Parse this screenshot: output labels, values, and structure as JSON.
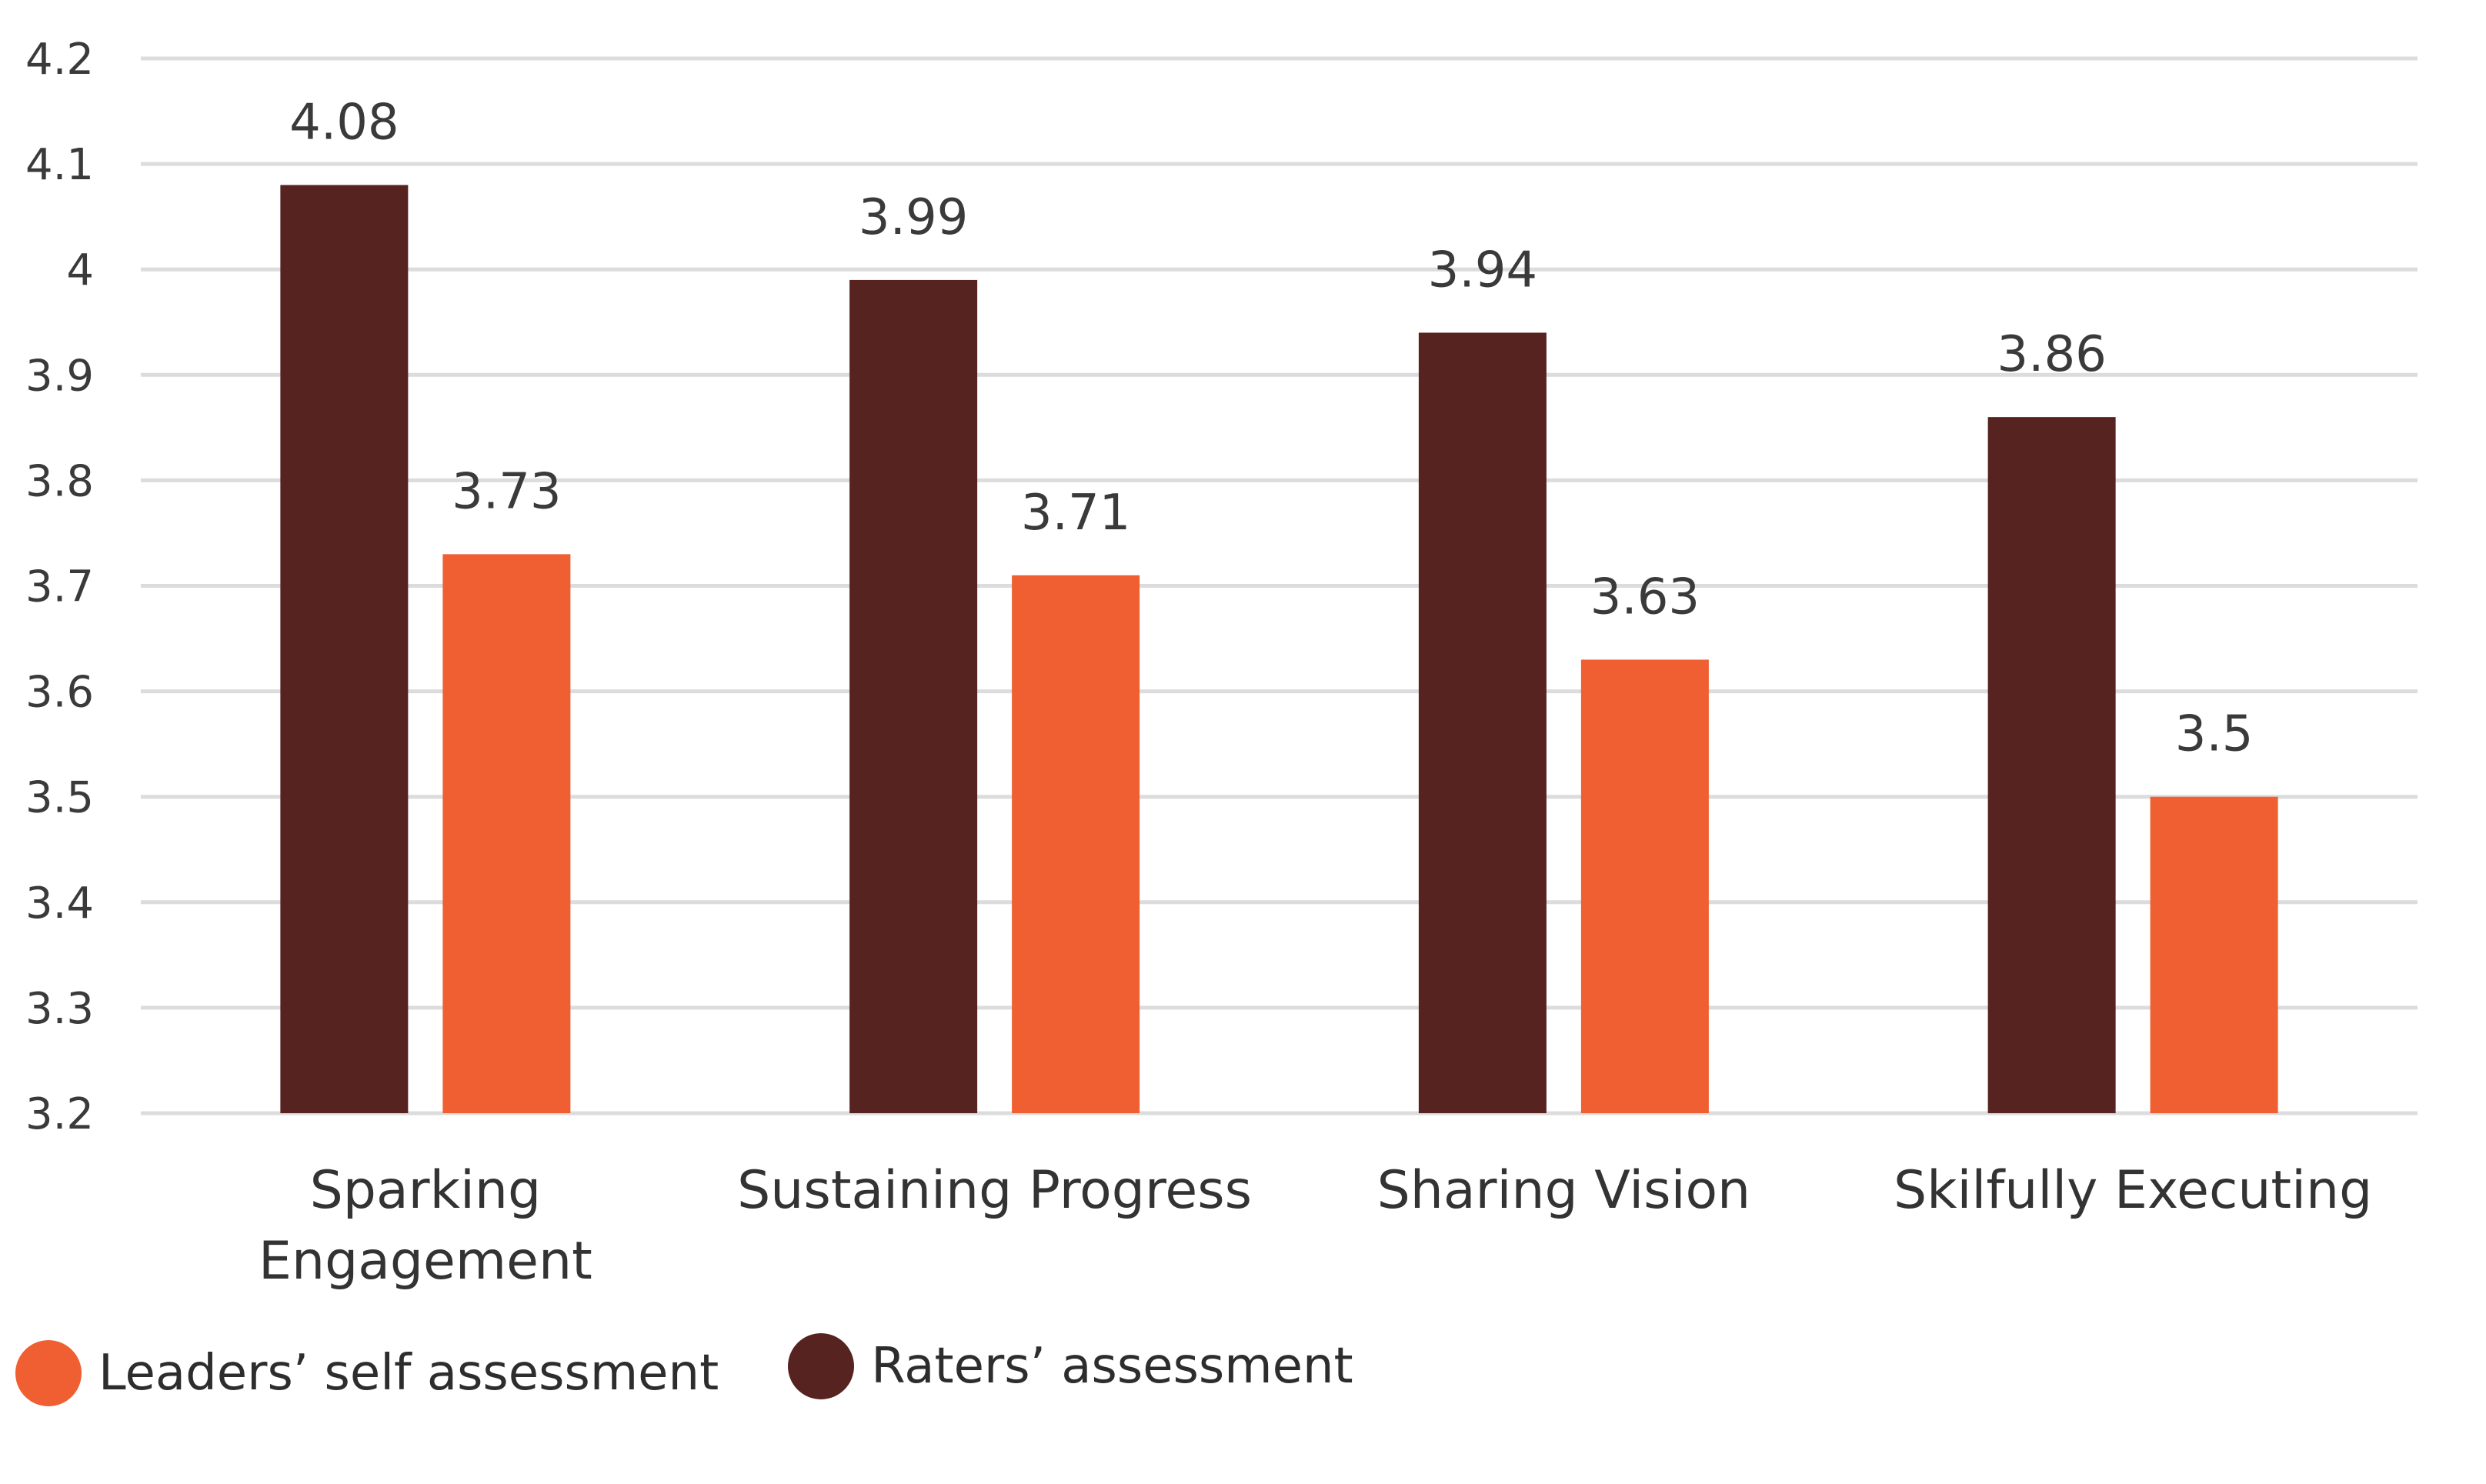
{
  "chart_data": {
    "type": "bar",
    "title": "",
    "xlabel": "",
    "ylabel": "",
    "ylim": [
      3.2,
      4.2
    ],
    "yticks": [
      "3.2",
      "3.3",
      "3.4",
      "3.5",
      "3.6",
      "3.7",
      "3.8",
      "3.9",
      "4",
      "4.1",
      "4.2"
    ],
    "grid": true,
    "categories": [
      [
        "Sparking",
        "Engagement"
      ],
      [
        "Sustaining Progress"
      ],
      [
        "Sharing Vision"
      ],
      [
        "Skilfully Executing"
      ]
    ],
    "series": [
      {
        "name": "Raters’ assessment",
        "color": "#562320",
        "values": [
          4.08,
          3.99,
          3.94,
          3.86
        ],
        "labels": [
          "4.08",
          "3.99",
          "3.94",
          "3.86"
        ]
      },
      {
        "name": "Leaders’ self assessment",
        "color": "#EF5F32",
        "values": [
          3.73,
          3.71,
          3.63,
          3.5
        ],
        "labels": [
          "3.73",
          "3.71",
          "3.63",
          "3.5"
        ]
      }
    ],
    "legend_position": "bottom-left",
    "legend": [
      {
        "label": "Leaders’ self assessment",
        "color": "#EF5F32"
      },
      {
        "label": "Raters’ assessment",
        "color": "#562320"
      }
    ],
    "gridline_color": "#dcdcde"
  }
}
